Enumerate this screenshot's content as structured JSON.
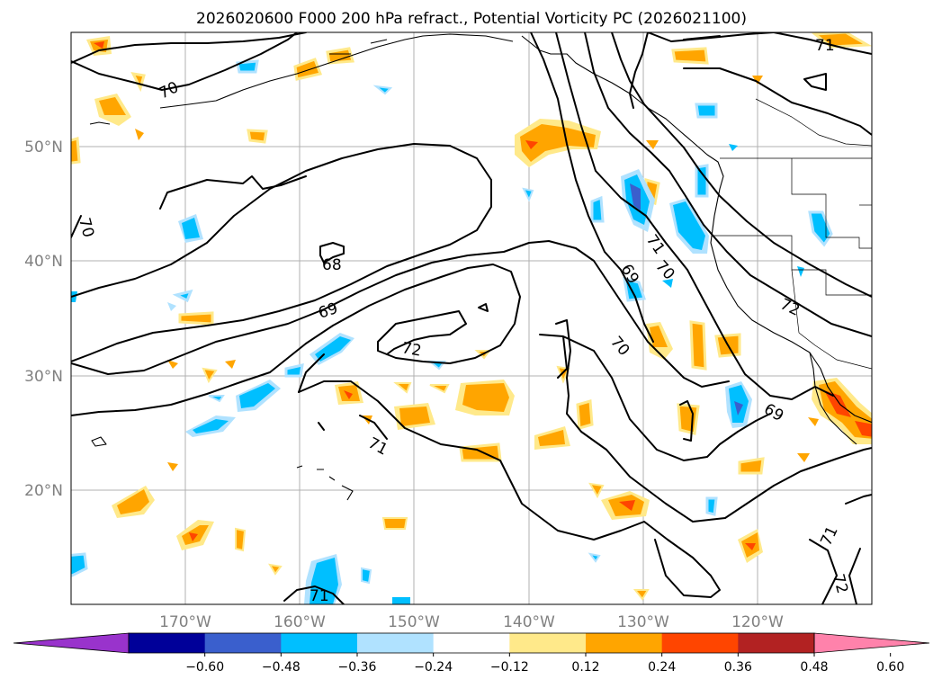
{
  "title": "2026020600 F000 200 hPa refract., Potential Vorticity PC (2026021100)",
  "map": {
    "lon_range": [
      -180,
      -110
    ],
    "lat_range": [
      10,
      60
    ],
    "gridlines": true,
    "lat_labels": [
      "20°N",
      "30°N",
      "40°N",
      "50°N"
    ],
    "lon_labels": [
      "170°W",
      "160°W",
      "150°W",
      "140°W",
      "130°W",
      "120°W"
    ],
    "contour_labels": [
      "70",
      "70",
      "68",
      "69",
      "72",
      "71",
      "71",
      "69",
      "70",
      "70",
      "69",
      "72",
      "71",
      "71",
      "72"
    ]
  },
  "colorbar": {
    "orientation": "horizontal",
    "extend": "both",
    "tick_labels": [
      "−0.60",
      "−0.48",
      "−0.36",
      "−0.24",
      "−0.12",
      "0.12",
      "0.24",
      "0.36",
      "0.48",
      "0.60"
    ],
    "colors": [
      "#9933cc",
      "#000099",
      "#3a5fcd",
      "#00bfff",
      "#b0e2ff",
      "#ffffff",
      "#ffe98a",
      "#ffa500",
      "#ff4500",
      "#b22222",
      "#ff82ab"
    ]
  }
}
